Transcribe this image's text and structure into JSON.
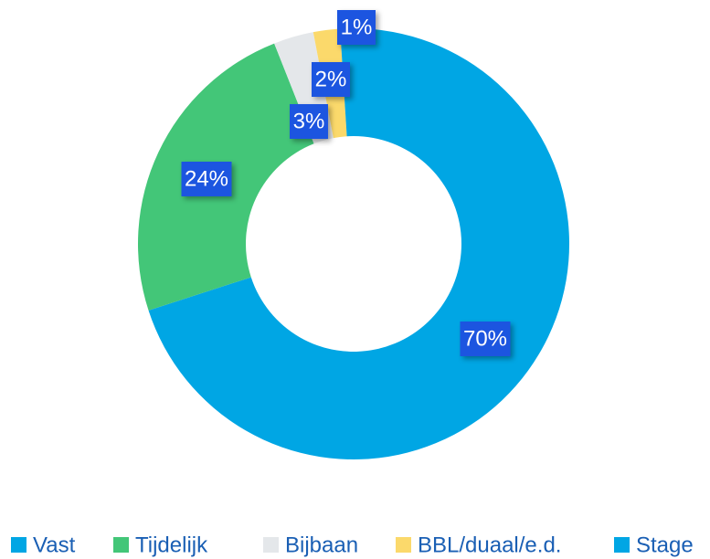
{
  "chart_data": {
    "type": "donut",
    "categories": [
      "Vast",
      "Tijdelijk",
      "Bijbaan",
      "BBL/duaal/e.d.",
      "Stage"
    ],
    "values": [
      70,
      24,
      3,
      2,
      1
    ],
    "value_labels": [
      "70%",
      "24%",
      "3%",
      "2%",
      "1%"
    ],
    "colors": [
      "#00a6e4",
      "#43c678",
      "#e4e7ea",
      "#fbd96b",
      "#00a6e4"
    ],
    "legend": "bottom"
  }
}
